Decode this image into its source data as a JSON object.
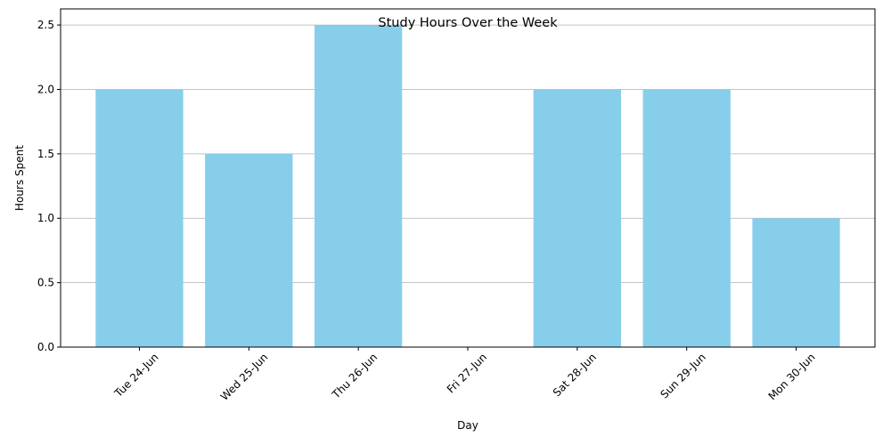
{
  "chart_data": {
    "type": "bar",
    "title": "Study Hours Over the Week",
    "xlabel": "Day",
    "ylabel": "Hours Spent",
    "categories": [
      "Tue 24-Jun",
      "Wed 25-Jun",
      "Thu 26-Jun",
      "Fri 27-Jun",
      "Sat 28-Jun",
      "Sun 29-Jun",
      "Mon 30-Jun"
    ],
    "values": [
      2.0,
      1.5,
      2.5,
      0,
      2.0,
      2.0,
      1.0
    ],
    "ylim": [
      0,
      2.625
    ],
    "yticks": [
      "0.0",
      "0.5",
      "1.0",
      "1.5",
      "2.0",
      "2.5"
    ],
    "grid": "y-axis horizontal lines",
    "bar_color": "#87ceeb",
    "grid_color": "#b0b0b0"
  }
}
